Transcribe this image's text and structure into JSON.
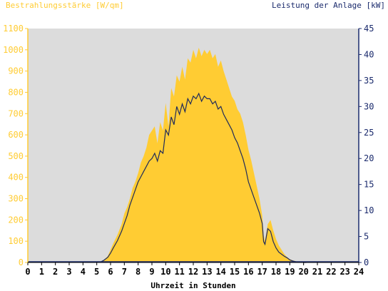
{
  "chart_data": {
    "type": "area",
    "left_axis_title": "Bestrahlungsstärke [W/qm]",
    "right_axis_title": "Leistung der Anlage [kW]",
    "xlabel": "Uhrzeit in Stunden",
    "xlim": [
      0,
      24
    ],
    "x_ticks": [
      0,
      1,
      2,
      3,
      4,
      5,
      6,
      7,
      8,
      9,
      10,
      11,
      12,
      13,
      14,
      15,
      16,
      17,
      18,
      19,
      20,
      21,
      22,
      23,
      24
    ],
    "y_left_lim": [
      0,
      1100
    ],
    "y_left_ticks": [
      0,
      100,
      200,
      300,
      400,
      500,
      600,
      700,
      800,
      900,
      1000,
      1100
    ],
    "y_right_lim": [
      0,
      45
    ],
    "y_right_ticks": [
      0,
      5,
      10,
      15,
      20,
      25,
      30,
      35,
      40,
      45
    ],
    "grid": false,
    "colors": {
      "irradiance": "#ffcc33",
      "power": "#1f2a5a",
      "left_axis": "#ffcc33",
      "right_axis": "#1a2a6c",
      "plot_bg": "#dcdcdc"
    },
    "series": [
      {
        "axis": "left",
        "style": "area",
        "x": [
          5.2,
          5.5,
          5.8,
          6.0,
          6.2,
          6.5,
          6.8,
          7.0,
          7.2,
          7.4,
          7.6,
          7.8,
          8.0,
          8.2,
          8.4,
          8.6,
          8.8,
          9.0,
          9.2,
          9.4,
          9.6,
          9.8,
          10.0,
          10.2,
          10.4,
          10.6,
          10.8,
          11.0,
          11.2,
          11.4,
          11.6,
          11.8,
          12.0,
          12.2,
          12.4,
          12.6,
          12.8,
          13.0,
          13.2,
          13.4,
          13.6,
          13.8,
          14.0,
          14.2,
          14.4,
          14.6,
          14.8,
          15.0,
          15.2,
          15.4,
          15.6,
          15.8,
          16.0,
          16.2,
          16.4,
          16.6,
          16.8,
          17.0,
          17.1,
          17.2,
          17.4,
          17.6,
          17.8,
          18.0,
          18.2,
          18.4,
          18.6,
          18.8,
          19.0,
          19.2,
          19.5,
          19.8,
          20.0,
          20.2
        ],
        "values": [
          0,
          10,
          30,
          60,
          90,
          130,
          180,
          230,
          260,
          300,
          350,
          380,
          420,
          470,
          500,
          540,
          600,
          620,
          640,
          560,
          660,
          620,
          750,
          640,
          820,
          780,
          880,
          850,
          920,
          860,
          960,
          940,
          1000,
          960,
          1010,
          970,
          1000,
          980,
          1000,
          960,
          980,
          920,
          950,
          900,
          860,
          820,
          780,
          760,
          720,
          700,
          660,
          600,
          530,
          480,
          420,
          360,
          300,
          220,
          130,
          100,
          180,
          200,
          150,
          110,
          80,
          60,
          40,
          25,
          15,
          10,
          5,
          2,
          0,
          0
        ]
      },
      {
        "axis": "right",
        "style": "line",
        "x": [
          5.2,
          5.5,
          5.8,
          6.0,
          6.2,
          6.5,
          6.8,
          7.0,
          7.2,
          7.4,
          7.6,
          7.8,
          8.0,
          8.2,
          8.4,
          8.6,
          8.8,
          9.0,
          9.2,
          9.4,
          9.6,
          9.8,
          10.0,
          10.2,
          10.4,
          10.6,
          10.8,
          11.0,
          11.2,
          11.4,
          11.6,
          11.8,
          12.0,
          12.2,
          12.4,
          12.6,
          12.8,
          13.0,
          13.2,
          13.4,
          13.6,
          13.8,
          14.0,
          14.2,
          14.4,
          14.6,
          14.8,
          15.0,
          15.2,
          15.4,
          15.6,
          15.8,
          16.0,
          16.2,
          16.4,
          16.6,
          16.8,
          17.0,
          17.1,
          17.2,
          17.4,
          17.6,
          17.8,
          18.0,
          18.2,
          18.4,
          18.6,
          18.8,
          19.0,
          19.2,
          19.5,
          19.8,
          20.0,
          20.2
        ],
        "values": [
          0,
          0.4,
          1.0,
          1.8,
          2.8,
          4.2,
          6.0,
          7.5,
          9.0,
          11.0,
          12.5,
          14.0,
          15.5,
          16.5,
          17.5,
          18.5,
          19.5,
          20.0,
          21.0,
          19.5,
          21.5,
          21.0,
          25.5,
          24.5,
          28.0,
          26.5,
          30.0,
          28.5,
          30.5,
          29.0,
          31.5,
          30.5,
          32.0,
          31.5,
          32.5,
          31.0,
          32.0,
          31.5,
          31.5,
          30.5,
          31.0,
          29.5,
          30.0,
          28.5,
          27.5,
          26.5,
          25.5,
          24.0,
          23.0,
          21.5,
          20.0,
          18.0,
          15.5,
          14.0,
          12.5,
          11.0,
          9.5,
          7.5,
          4.0,
          3.5,
          6.5,
          6.0,
          4.0,
          2.8,
          2.0,
          1.6,
          1.2,
          0.9,
          0.5,
          0.3,
          0.1,
          0.05,
          0,
          0
        ]
      }
    ]
  }
}
